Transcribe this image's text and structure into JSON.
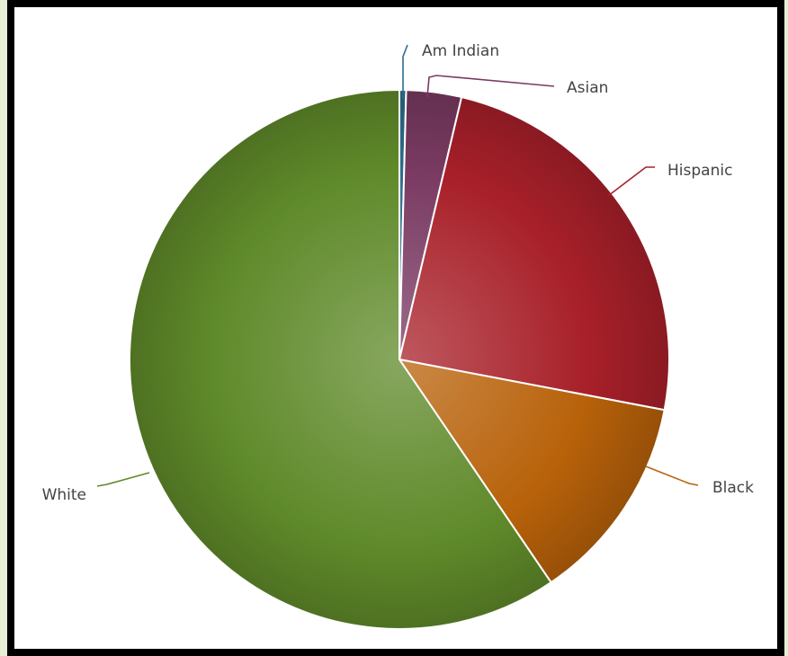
{
  "chart_data": {
    "type": "pie",
    "title": "",
    "slices": [
      {
        "label": "Am Indian",
        "value": 0.4,
        "color": "#2f6c8c"
      },
      {
        "label": "Asian",
        "value": 3.3,
        "color": "#7a3a62"
      },
      {
        "label": "Hispanic",
        "value": 24.3,
        "color": "#a82029"
      },
      {
        "label": "Black",
        "value": 12.5,
        "color": "#b8620a"
      },
      {
        "label": "White",
        "value": 59.5,
        "color": "#5f8a2a"
      }
    ],
    "start_angle_deg": 0,
    "direction": "clockwise",
    "legend": "none",
    "data_labels": "outside with connector lines"
  }
}
